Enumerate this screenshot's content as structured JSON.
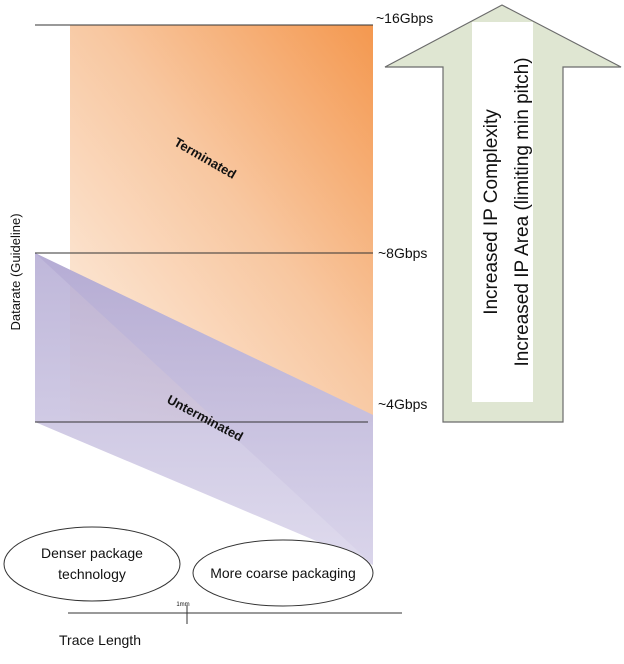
{
  "diagram": {
    "y_axis_label": "Datarate (Guideline)",
    "x_axis_label": "Trace Length",
    "x_tick_label": "1mm",
    "rate_labels": {
      "top": "~16Gbps",
      "mid": "~8Gbps",
      "low": "~4Gbps"
    },
    "region_labels": {
      "terminated": "Terminated",
      "unterminated": "Unterminated"
    },
    "packaging": {
      "denser_line1": "Denser package",
      "denser_line2": "technology",
      "coarse": "More coarse packaging"
    },
    "arrow_text": {
      "line1": "Increased IP Complexity",
      "line2": "Increased IP Area (limiting min pitch)"
    },
    "colors": {
      "terminated_top": "#f4984f",
      "terminated_bottom": "#fdf1e6",
      "unterminated": "#b8b0d6",
      "arrow_fill": "#dfe6d2",
      "arrow_stroke": "#6b6b6b"
    }
  }
}
